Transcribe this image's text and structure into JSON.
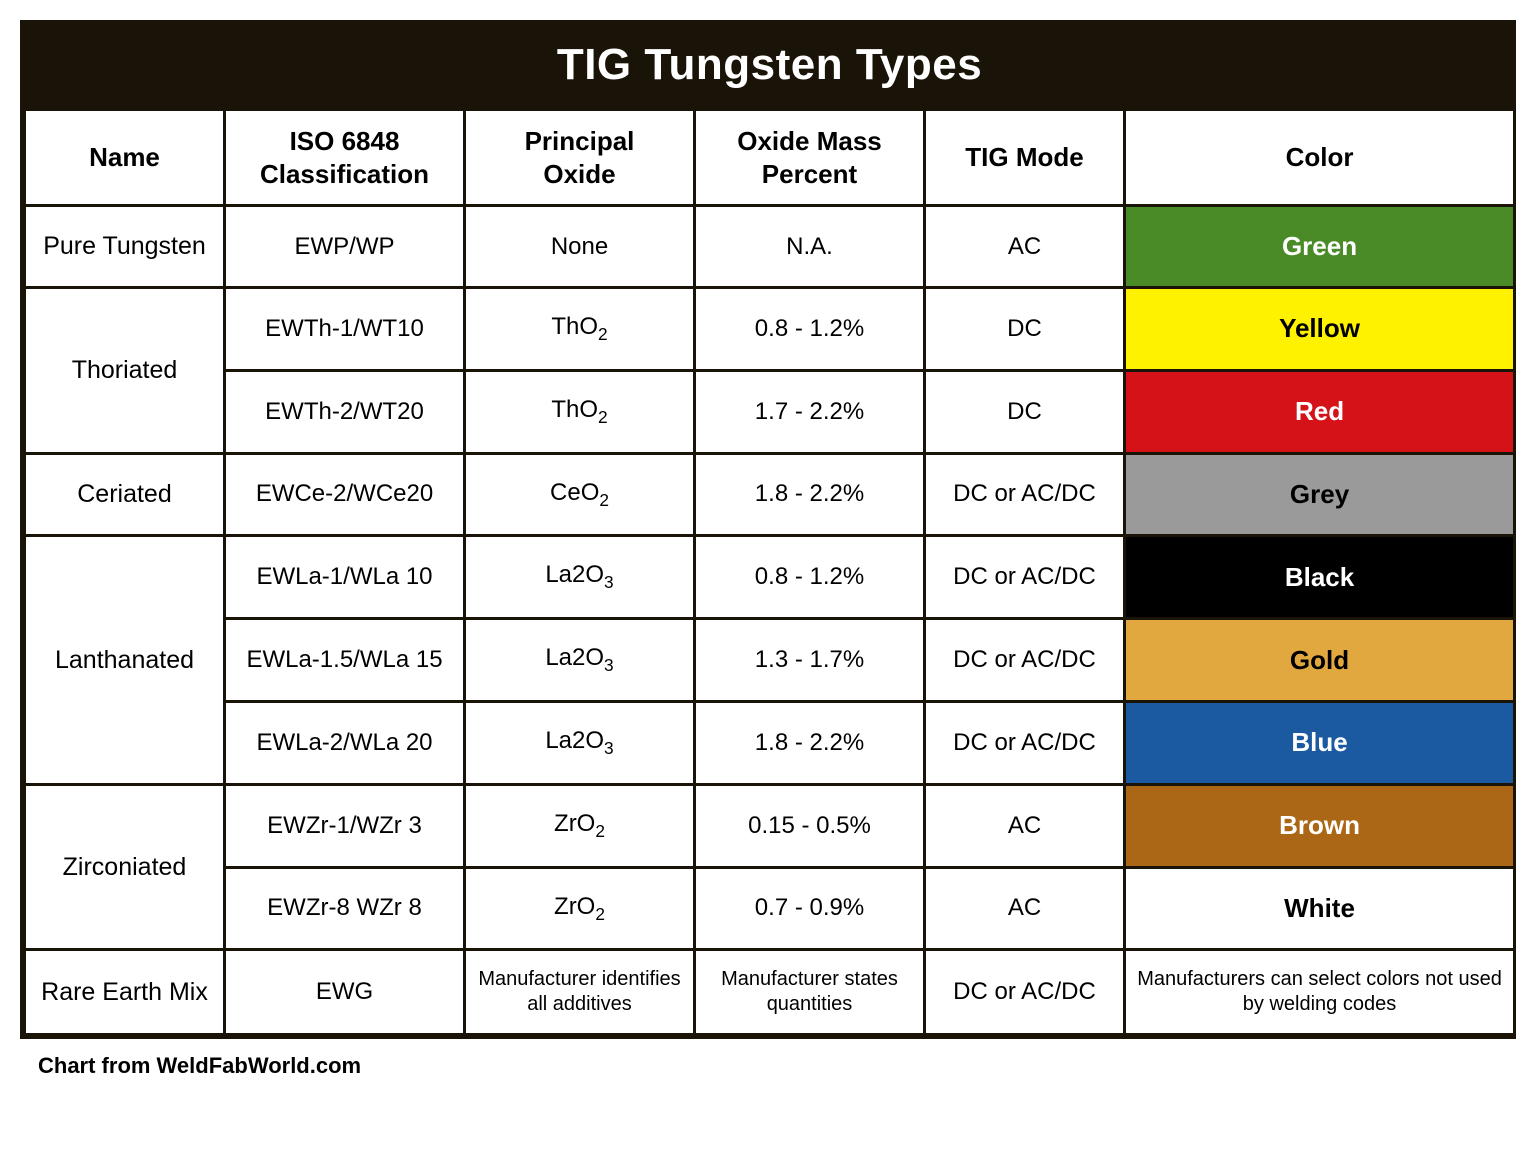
{
  "title": "TIG Tungsten Types",
  "credit": "Chart from WeldFabWorld.com",
  "headers": {
    "name": "Name",
    "iso": "ISO 6848 Classification",
    "oxide": "Principal Oxide",
    "mass": "Oxide Mass Percent",
    "mode": "TIG Mode",
    "color": "Color"
  },
  "colors": {
    "green": {
      "bg": "#4a8a27",
      "fg": "#ffffff"
    },
    "yellow": {
      "bg": "#fff200",
      "fg": "#000000"
    },
    "red": {
      "bg": "#d51217",
      "fg": "#ffffff"
    },
    "grey": {
      "bg": "#9a9a9a",
      "fg": "#000000"
    },
    "black": {
      "bg": "#000000",
      "fg": "#ffffff"
    },
    "gold": {
      "bg": "#e0a83e",
      "fg": "#000000"
    },
    "blue": {
      "bg": "#1b5aa0",
      "fg": "#ffffff"
    },
    "brown": {
      "bg": "#ac6716",
      "fg": "#ffffff"
    },
    "white": {
      "bg": "#ffffff",
      "fg": "#000000"
    }
  },
  "groups": [
    {
      "name": "Pure Tungsten",
      "rows": [
        {
          "iso": "EWP/WP",
          "oxide_html": "None",
          "mass": "N.A.",
          "mode": "AC",
          "color_label": "Green",
          "color_key": "green"
        }
      ]
    },
    {
      "name": "Thoriated",
      "rows": [
        {
          "iso": "EWTh-1/WT10",
          "oxide_html": "ThO<span class=\"sub\">2</span>",
          "mass": "0.8 - 1.2%",
          "mode": "DC",
          "color_label": "Yellow",
          "color_key": "yellow"
        },
        {
          "iso": "EWTh-2/WT20",
          "oxide_html": "ThO<span class=\"sub\">2</span>",
          "mass": "1.7 - 2.2%",
          "mode": "DC",
          "color_label": "Red",
          "color_key": "red"
        }
      ]
    },
    {
      "name": "Ceriated",
      "rows": [
        {
          "iso": "EWCe-2/WCe20",
          "oxide_html": "CeO<span class=\"sub\">2</span>",
          "mass": "1.8 - 2.2%",
          "mode": "DC or AC/DC",
          "color_label": "Grey",
          "color_key": "grey"
        }
      ]
    },
    {
      "name": "Lanthanated",
      "rows": [
        {
          "iso": "EWLa-1/WLa 10",
          "oxide_html": "La2O<span class=\"sub\">3</span>",
          "mass": "0.8 - 1.2%",
          "mode": "DC or AC/DC",
          "color_label": "Black",
          "color_key": "black"
        },
        {
          "iso": "EWLa-1.5/WLa 15",
          "oxide_html": "La2O<span class=\"sub\">3</span>",
          "mass": "1.3 - 1.7%",
          "mode": "DC or AC/DC",
          "color_label": "Gold",
          "color_key": "gold"
        },
        {
          "iso": "EWLa-2/WLa 20",
          "oxide_html": "La2O<span class=\"sub\">3</span>",
          "mass": "1.8 - 2.2%",
          "mode": "DC or AC/DC",
          "color_label": "Blue",
          "color_key": "blue"
        }
      ]
    },
    {
      "name": "Zirconiated",
      "rows": [
        {
          "iso": "EWZr-1/WZr 3",
          "oxide_html": "ZrO<span class=\"sub\">2</span>",
          "mass": "0.15 - 0.5%",
          "mode": "AC",
          "color_label": "Brown",
          "color_key": "brown"
        },
        {
          "iso": "EWZr-8 WZr 8",
          "oxide_html": "ZrO<span class=\"sub\">2</span>",
          "mass": "0.7 - 0.9%",
          "mode": "AC",
          "color_label": "White",
          "color_key": "white"
        }
      ]
    },
    {
      "name": "Rare Earth Mix",
      "rows": [
        {
          "iso": "EWG",
          "oxide_html": "Manufacturer identifies all additives",
          "mass": "Manufacturer states quantities",
          "mode": "DC or AC/DC",
          "color_label": "Manufacturers can select colors not used by welding codes",
          "color_key": null,
          "small": true
        }
      ]
    }
  ]
}
